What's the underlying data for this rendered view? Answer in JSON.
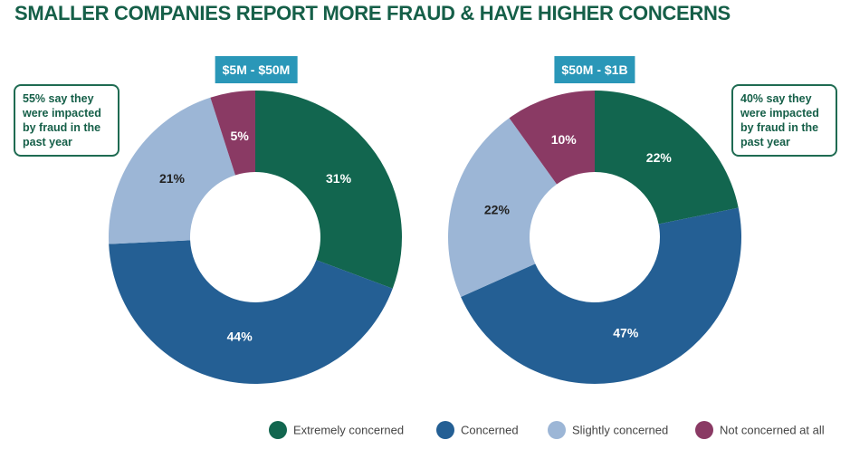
{
  "title": "SMALLER COMPANIES REPORT MORE FRAUD & HAVE HIGHER CONCERNS",
  "legend": {
    "labels": [
      "Extremely concerned",
      "Concerned",
      "Slightly concerned",
      "Not concerned at all"
    ],
    "colors": [
      "#12664f",
      "#245f94",
      "#9cb6d6",
      "#8a3a64"
    ]
  },
  "chart_data": [
    {
      "type": "donut",
      "subtitle": "$5M - $50M",
      "values": [
        31,
        44,
        21,
        5
      ],
      "value_labels": [
        "31%",
        "44%",
        "21%",
        "5%"
      ],
      "annotation": "55% say they were impacted by fraud in the past year"
    },
    {
      "type": "donut",
      "subtitle": "$50M - $1B",
      "values": [
        22,
        47,
        22,
        10
      ],
      "value_labels": [
        "22%",
        "47%",
        "22%",
        "10%"
      ],
      "annotation": "40% say they were impacted by fraud in the past year"
    }
  ]
}
